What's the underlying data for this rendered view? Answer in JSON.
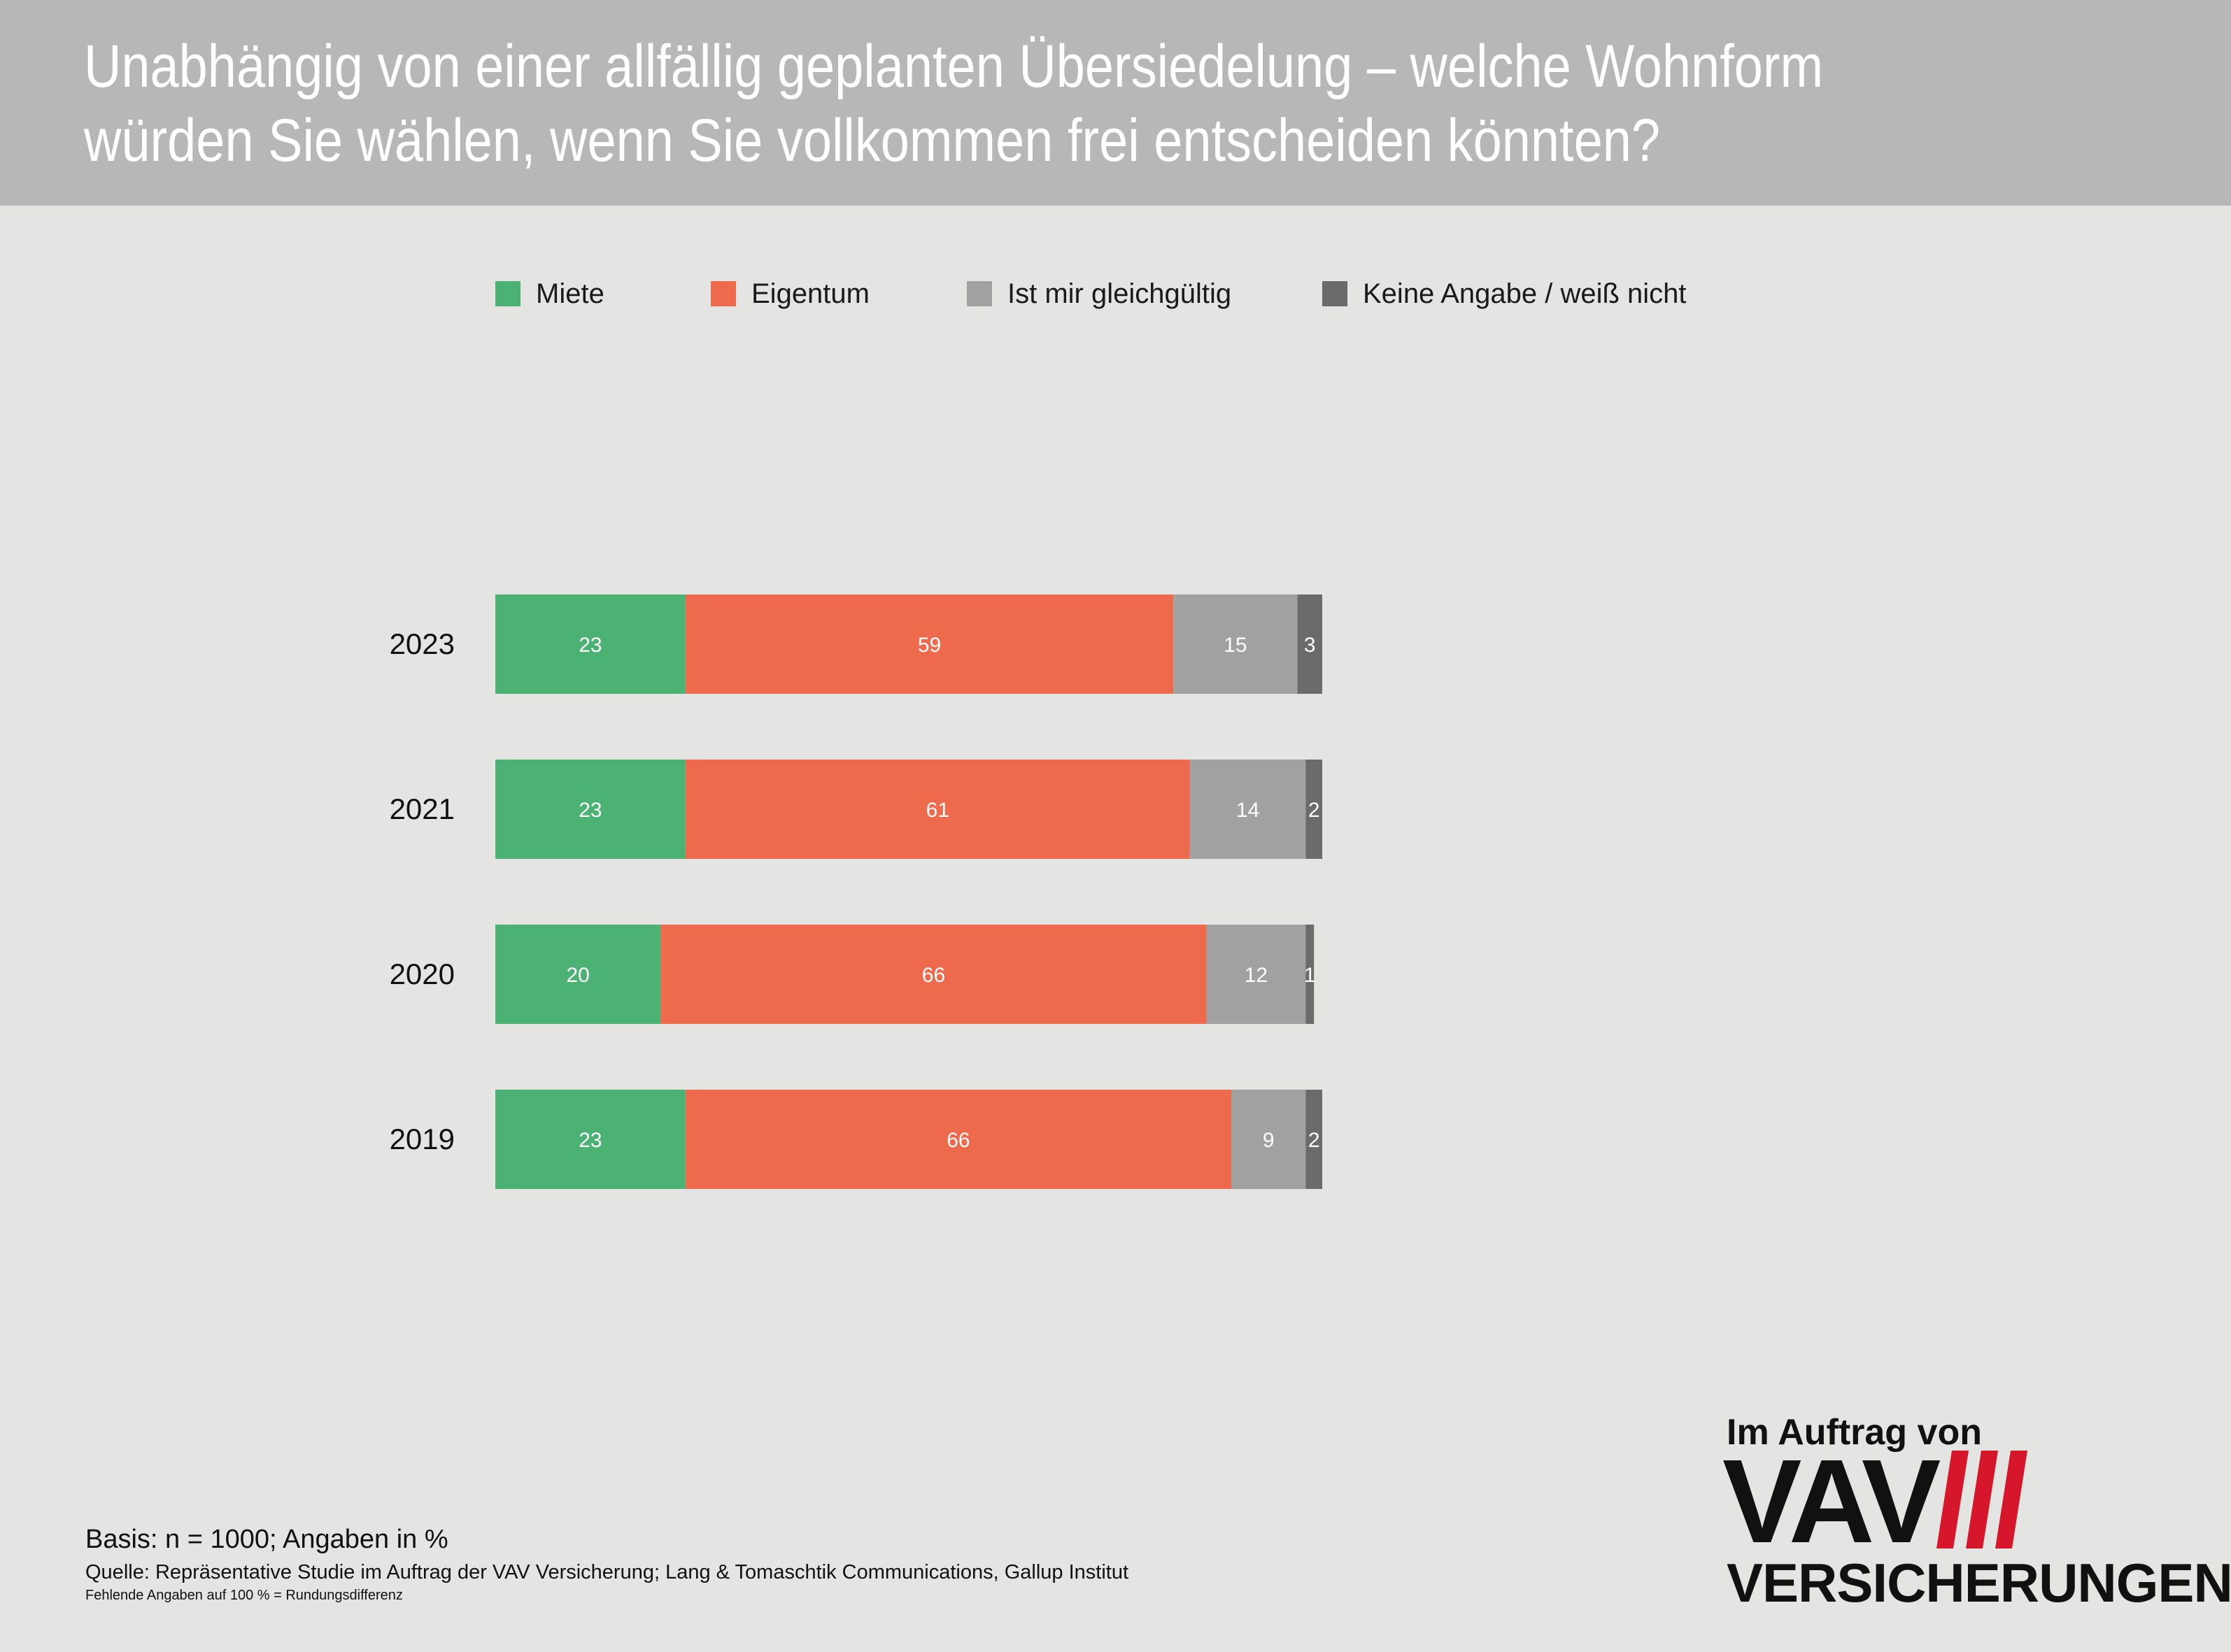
{
  "title": {
    "line1": "Unabhängig von einer allfällig geplanten Übersiedelung – welche Wohnform",
    "line2": "würden Sie wählen, wenn Sie vollkommen frei entscheiden könnten?"
  },
  "legend": [
    {
      "label": "Miete",
      "color": "#4cb273"
    },
    {
      "label": "Eigentum",
      "color": "#ee6a4c"
    },
    {
      "label": "Ist mir gleichgültig",
      "color": "#a1a1a1"
    },
    {
      "label": "Keine Angabe / weiß nicht",
      "color": "#6b6b6b"
    }
  ],
  "chart_data": {
    "type": "bar",
    "orientation": "horizontal",
    "stacked": true,
    "categories": [
      "2023",
      "2021",
      "2020",
      "2019"
    ],
    "series": [
      {
        "name": "Miete",
        "color": "#4cb273",
        "values": [
          23,
          23,
          20,
          23
        ]
      },
      {
        "name": "Eigentum",
        "color": "#ee6a4c",
        "values": [
          59,
          61,
          66,
          66
        ]
      },
      {
        "name": "Ist mir gleichgültig",
        "color": "#a1a1a1",
        "values": [
          15,
          14,
          12,
          9
        ]
      },
      {
        "name": "Keine Angabe / weiß nicht",
        "color": "#6b6b6b",
        "values": [
          3,
          2,
          1,
          2
        ]
      }
    ],
    "xlim": [
      0,
      100
    ],
    "legend_position": "top",
    "grid": false
  },
  "footer": {
    "basis": "Basis: n = 1000; Angaben in %",
    "source": "Quelle: Repräsentative Studie im Auftrag der VAV Versicherung; Lang & Tomaschtik Communications, Gallup Institut",
    "note": "Fehlende Angaben auf 100 % = Rundungsdifferenz"
  },
  "logo": {
    "top": "Im Auftrag von",
    "name": "VAV",
    "bottom": "VERSICHERUNGEN",
    "accent": "#d6162a"
  }
}
